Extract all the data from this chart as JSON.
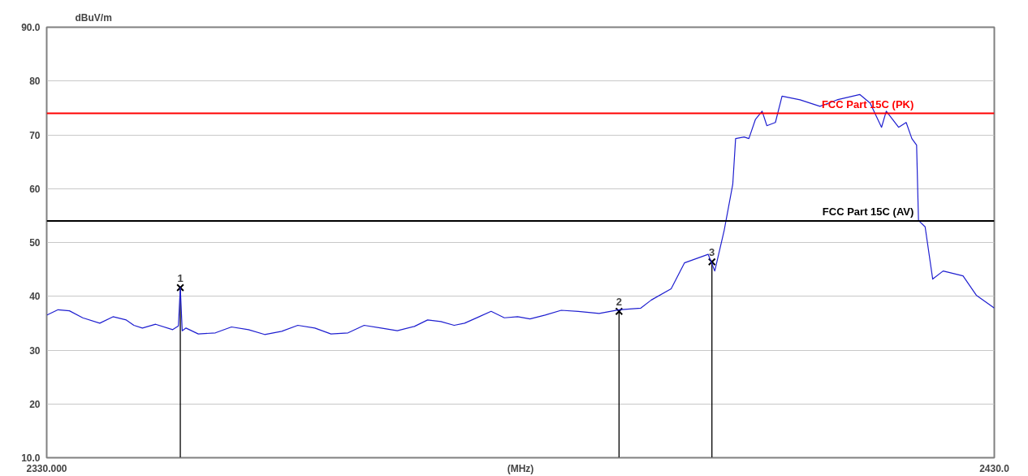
{
  "chart_data": {
    "type": "line",
    "xlabel": "(MHz)",
    "ylabel": "dBuV/m",
    "xlim": [
      2330,
      2430
    ],
    "xticks": [
      {
        "value": 2330,
        "label": "2330.000"
      },
      {
        "value": 2430,
        "label": "2430.0"
      }
    ],
    "ylim": [
      10,
      90
    ],
    "yticks": [
      {
        "value": 10,
        "label": "10.0"
      },
      20,
      30,
      40,
      50,
      60,
      70,
      80,
      {
        "value": 90,
        "label": "90.0"
      }
    ],
    "grid": "y",
    "line_style": "solid",
    "series": [
      {
        "color": "#1f1fd0",
        "marker": "none",
        "x": [
          2330,
          2331.2,
          2332.4,
          2333.8,
          2335.6,
          2337.0,
          2338.4,
          2339.2,
          2340.1,
          2341.5,
          2343.3,
          2343.9,
          2344.1,
          2344.3,
          2344.7,
          2346.0,
          2347.8,
          2349.5,
          2351.3,
          2353.0,
          2354.8,
          2356.5,
          2358.3,
          2360.0,
          2361.8,
          2363.5,
          2365.3,
          2367.0,
          2368.8,
          2370.2,
          2371.6,
          2373.0,
          2374.1,
          2375.5,
          2376.9,
          2378.3,
          2379.7,
          2381.0,
          2382.6,
          2384.3,
          2386.1,
          2388.3,
          2390.4,
          2392.7,
          2393.8,
          2395.9,
          2397.3,
          2399.8,
          2400.5,
          2401.5,
          2402.4,
          2402.7,
          2403.6,
          2404.1,
          2404.8,
          2405.5,
          2406.0,
          2406.9,
          2407.6,
          2409.5,
          2411.6,
          2413.4,
          2415.8,
          2416.9,
          2418.1,
          2418.6,
          2419.9,
          2420.7,
          2421.3,
          2421.8,
          2422.0,
          2422.7,
          2423.5,
          2424.6,
          2426.7,
          2428.1,
          2430
        ],
        "values": [
          36.5,
          37.5,
          37.3,
          36.0,
          35.0,
          36.2,
          35.6,
          34.6,
          34.1,
          34.8,
          33.8,
          34.5,
          41.6,
          33.6,
          34.1,
          33.0,
          33.2,
          34.3,
          33.8,
          32.9,
          33.5,
          34.6,
          34.1,
          33.0,
          33.2,
          34.6,
          34.1,
          33.6,
          34.4,
          35.6,
          35.3,
          34.6,
          35.0,
          36.1,
          37.2,
          36.0,
          36.2,
          35.8,
          36.5,
          37.4,
          37.2,
          36.8,
          37.5,
          37.8,
          39.3,
          41.4,
          46.2,
          47.8,
          44.7,
          52.3,
          60.8,
          69.3,
          69.6,
          69.3,
          72.9,
          74.4,
          71.7,
          72.3,
          77.2,
          76.5,
          75.3,
          76.5,
          77.5,
          75.9,
          71.4,
          74.4,
          71.4,
          72.3,
          69.3,
          68.1,
          54.1,
          52.9,
          43.2,
          44.7,
          43.8,
          40.2,
          37.8
        ]
      },
      {
        "type": "lollipop",
        "color": "#000000",
        "marker": "cross",
        "x": [
          2344.1,
          2390.4,
          2400.2
        ],
        "values": [
          41.6,
          37.2,
          46.4
        ]
      }
    ],
    "ref_lines": [
      {
        "axis": "y",
        "value": 74,
        "label": "FCC Part 15C (PK)",
        "color": "#ff0000"
      },
      {
        "axis": "y",
        "value": 54,
        "label": "FCC Part 15C (AV)",
        "color": "#000000"
      }
    ],
    "annotations": [
      {
        "text": "1",
        "x": 2344.1,
        "y": 41.6
      },
      {
        "text": "2",
        "x": 2390.4,
        "y": 37.2
      },
      {
        "text": "3",
        "x": 2400.2,
        "y": 46.4
      }
    ]
  }
}
